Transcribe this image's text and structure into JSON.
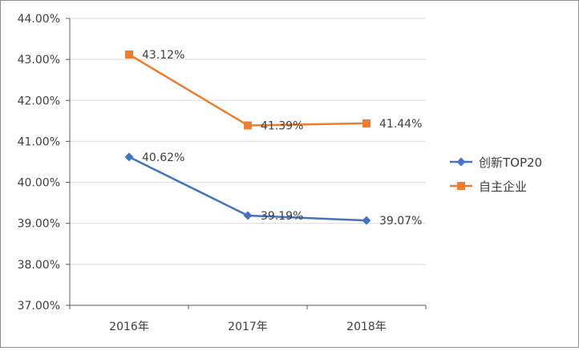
{
  "chart_data": {
    "type": "line",
    "title": "",
    "xlabel": "",
    "ylabel": "",
    "categories": [
      "2016年",
      "2017年",
      "2018年"
    ],
    "ylim": [
      37,
      44
    ],
    "ytick_step": 1,
    "ytick_labels": [
      "37.00%",
      "38.00%",
      "39.00%",
      "40.00%",
      "41.00%",
      "42.00%",
      "43.00%",
      "44.00%"
    ],
    "grid": "horizontal",
    "legend_position": "right",
    "series": [
      {
        "name": "创新TOP20",
        "values": [
          40.62,
          39.19,
          39.07
        ],
        "labels": [
          "40.62%",
          "39.19%",
          "39.07%"
        ],
        "color": "#4472C4",
        "marker": "diamond"
      },
      {
        "name": "自主企业",
        "values": [
          43.12,
          41.39,
          41.44
        ],
        "labels": [
          "43.12%",
          "41.39%",
          "41.44%"
        ],
        "color": "#ED7D31",
        "marker": "square"
      }
    ]
  }
}
